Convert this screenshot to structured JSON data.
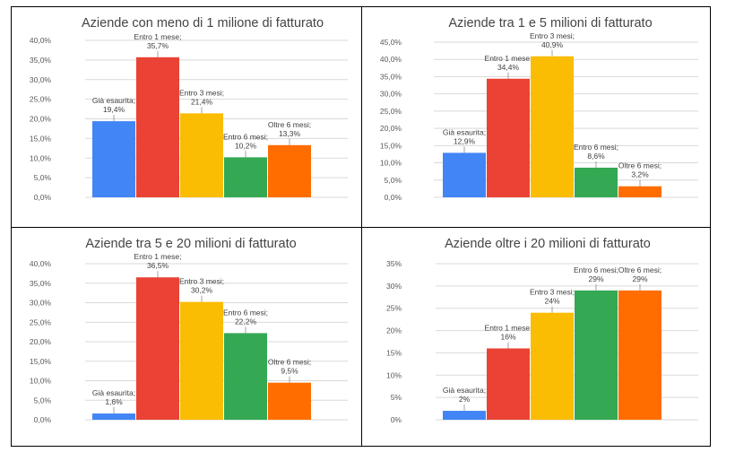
{
  "chart_data": [
    {
      "type": "bar",
      "title": "Aziende con meno di 1 milione di fatturato",
      "categories": [
        "Già esaurita",
        "Entro 1 mese",
        "Entro 3 mesi",
        "Entro 6 mesi",
        "Oltre 6 mesi"
      ],
      "values": [
        19.4,
        35.7,
        21.4,
        10.2,
        13.3
      ],
      "data_labels": [
        "Già esaurita;\n19,4%",
        "Entro 1 mese;\n35,7%",
        "Entro 3 mesi;\n21,4%",
        "Entro 6 mesi;\n10,2%",
        "Oltre 6 mesi;\n13,3%"
      ],
      "ylim": [
        0,
        40
      ],
      "ticks": [
        0,
        5,
        10,
        15,
        20,
        25,
        30,
        35,
        40
      ],
      "tick_labels": [
        "0,0%",
        "5,0%",
        "10,0%",
        "15,0%",
        "20,0%",
        "25,0%",
        "30,0%",
        "35,0%",
        "40,0%"
      ],
      "grid": true,
      "xlabel": "",
      "ylabel": ""
    },
    {
      "type": "bar",
      "title": "Aziende tra 1 e 5 milioni di fatturato",
      "categories": [
        "Già esaurita",
        "Entro 1 mese",
        "Entro 3 mesi",
        "Entro 6 mesi",
        "Oltre 6 mesi"
      ],
      "values": [
        12.9,
        34.4,
        40.9,
        8.6,
        3.2
      ],
      "data_labels": [
        "Già esaurita;\n12,9%",
        "Entro 1 mese;\n34,4%",
        "Entro 3 mesi;\n40,9%",
        "Entro 6 mesi;\n8,6%",
        "Oltre 6 mesi;\n3,2%"
      ],
      "ylim": [
        0,
        45
      ],
      "ticks": [
        0,
        5,
        10,
        15,
        20,
        25,
        30,
        35,
        40,
        45
      ],
      "tick_labels": [
        "0,0%",
        "5,0%",
        "10,0%",
        "15,0%",
        "20,0%",
        "25,0%",
        "30,0%",
        "35,0%",
        "40,0%",
        "45,0%"
      ],
      "grid": true,
      "xlabel": "",
      "ylabel": ""
    },
    {
      "type": "bar",
      "title": "Aziende tra 5 e 20 milioni di fatturato",
      "categories": [
        "Già esaurita",
        "Entro 1 mese",
        "Entro 3 mesi",
        "Entro 6 mesi",
        "Oltre 6 mesi"
      ],
      "values": [
        1.6,
        36.5,
        30.2,
        22.2,
        9.5
      ],
      "data_labels": [
        "Già esaurita;\n1,6%",
        "Entro 1 mese;\n36,5%",
        "Entro 3 mesi;\n30,2%",
        "Entro 6 mesi;\n22,2%",
        "Oltre 6 mesi;\n9,5%"
      ],
      "ylim": [
        0,
        40
      ],
      "ticks": [
        0,
        5,
        10,
        15,
        20,
        25,
        30,
        35,
        40
      ],
      "tick_labels": [
        "0,0%",
        "5,0%",
        "10,0%",
        "15,0%",
        "20,0%",
        "25,0%",
        "30,0%",
        "35,0%",
        "40,0%"
      ],
      "grid": true,
      "xlabel": "",
      "ylabel": ""
    },
    {
      "type": "bar",
      "title": "Aziende oltre i 20 milioni di fatturato",
      "categories": [
        "Già esaurita",
        "Entro 1 mese",
        "Entro 3 mesi",
        "Entro 6 mesi",
        "Oltre 6 mesi"
      ],
      "values": [
        2,
        16,
        24,
        29,
        29
      ],
      "data_labels": [
        "Già esaurita;\n2%",
        "Entro 1 mese;\n16%",
        "Entro 3 mesi;\n24%",
        "Entro 6 mesi;\n29%",
        "Oltre 6 mesi;\n29%"
      ],
      "ylim": [
        0,
        35
      ],
      "ticks": [
        0,
        5,
        10,
        15,
        20,
        25,
        30,
        35
      ],
      "tick_labels": [
        "0%",
        "5%",
        "10%",
        "15%",
        "20%",
        "25%",
        "30%",
        "35%"
      ],
      "grid": true,
      "xlabel": "",
      "ylabel": ""
    }
  ],
  "colors": [
    "#4285f4",
    "#ea4335",
    "#fbbc04",
    "#34a853",
    "#ff6d01"
  ]
}
